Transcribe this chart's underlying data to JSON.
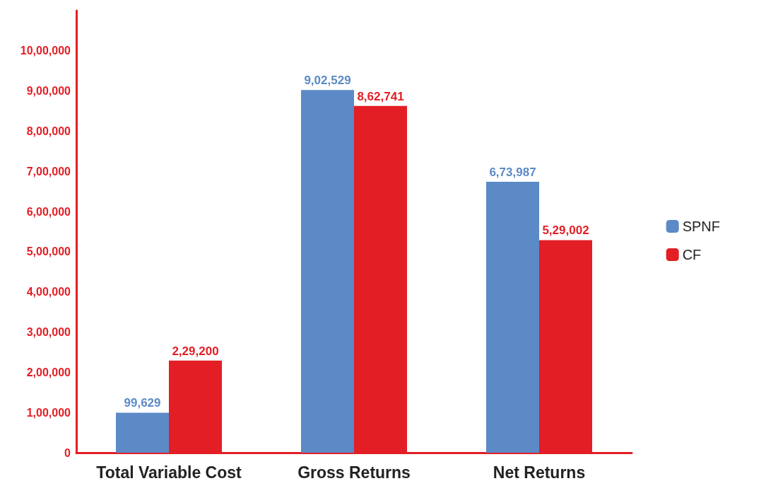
{
  "chart_data": {
    "type": "bar",
    "categories": [
      "Total Variable Cost",
      "Gross Returns",
      "Net Returns"
    ],
    "series": [
      {
        "name": "SPNF",
        "color": "#5b8ac6",
        "values": [
          99629,
          902529,
          673987
        ],
        "value_labels": [
          "99,629",
          "9,02,529",
          "6,73,987"
        ]
      },
      {
        "name": "CF",
        "color": "#e31e25",
        "values": [
          229200,
          862741,
          529002
        ],
        "value_labels": [
          "2,29,200",
          "8,62,741",
          "5,29,002"
        ]
      }
    ],
    "ylim": [
      0,
      1100000
    ],
    "yticks": [
      {
        "value": 0,
        "label": "0"
      },
      {
        "value": 100000,
        "label": "1,00,000"
      },
      {
        "value": 200000,
        "label": "2,00,000"
      },
      {
        "value": 300000,
        "label": "3,00,000"
      },
      {
        "value": 400000,
        "label": "4,00,000"
      },
      {
        "value": 500000,
        "label": "5,00,000"
      },
      {
        "value": 600000,
        "label": "6,00,000"
      },
      {
        "value": 700000,
        "label": "7,00,000"
      },
      {
        "value": 800000,
        "label": "8,00,000"
      },
      {
        "value": 900000,
        "label": "9,00,000"
      },
      {
        "value": 1000000,
        "label": "10,00,000"
      }
    ],
    "grid": false,
    "legend": "right"
  }
}
